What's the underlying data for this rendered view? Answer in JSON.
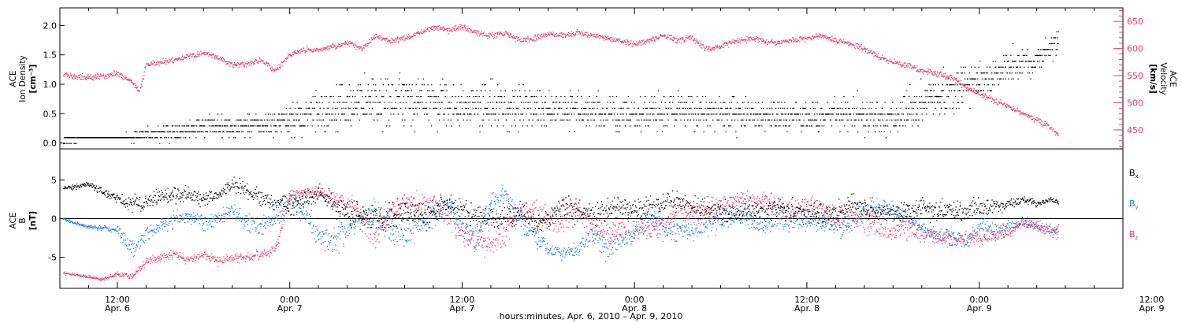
{
  "colors": {
    "black": "#000000",
    "red": "#e8396a",
    "blue": "#1f7fe0"
  },
  "chart_data": [
    {
      "type": "scatter",
      "panel": "top",
      "ylabel_left": [
        "ACE",
        "Ion Density",
        "[cm⁻³]"
      ],
      "ylabel_right": [
        "ACE",
        "Velocity",
        "[km/s]"
      ],
      "x_unit": "hours from 0:00 Apr. 6, 2010",
      "xlim": [
        8,
        82
      ],
      "ylim_left": [
        -0.1,
        2.3
      ],
      "ylim_right": [
        415,
        675
      ],
      "yticks_left": [
        "0.0",
        "0.5",
        "1.0",
        "1.5",
        "2.0"
      ],
      "yticks_left_values": [
        0.0,
        0.5,
        1.0,
        1.5,
        2.0
      ],
      "yticks_right": [
        "450",
        "500",
        "550",
        "600",
        "650"
      ],
      "yticks_right_values": [
        450,
        500,
        550,
        600,
        650
      ],
      "series": [
        {
          "color": "#000000",
          "axis": "left",
          "quantity": "ion density",
          "x": [
            8.2,
            10,
            12,
            13,
            14,
            16,
            18,
            20,
            22,
            24,
            27,
            30,
            33,
            36,
            39,
            42,
            45,
            48,
            51,
            54,
            57,
            60,
            63,
            66,
            69,
            70,
            72,
            74,
            76,
            77.5
          ],
          "y": [
            0.05,
            0.07,
            0.1,
            0.12,
            0.15,
            0.22,
            0.3,
            0.3,
            0.3,
            0.4,
            0.6,
            0.7,
            0.75,
            0.65,
            0.65,
            0.6,
            0.55,
            0.5,
            0.55,
            0.5,
            0.5,
            0.45,
            0.5,
            0.45,
            0.8,
            0.9,
            1.1,
            1.3,
            1.45,
            1.7
          ],
          "spread": [
            0.02,
            0.02,
            0.05,
            0.1,
            0.15,
            0.2,
            0.25,
            0.25,
            0.3,
            0.35,
            0.55,
            0.6,
            0.6,
            0.55,
            0.55,
            0.5,
            0.45,
            0.4,
            0.45,
            0.4,
            0.4,
            0.35,
            0.45,
            0.4,
            0.55,
            0.55,
            0.45,
            0.4,
            0.3,
            0.35
          ]
        },
        {
          "color": "#e8396a",
          "axis": "right",
          "quantity": "solar wind velocity",
          "x": [
            8.2,
            9,
            10,
            11,
            12,
            13,
            13.5,
            14,
            15,
            16,
            17,
            18,
            19,
            20,
            21,
            22,
            23,
            24,
            25,
            26,
            27,
            28,
            29,
            30,
            31,
            32,
            33,
            34,
            35,
            36,
            37,
            38,
            39,
            40,
            41,
            42,
            43,
            44,
            45,
            46,
            47,
            48,
            49,
            50,
            51,
            52,
            53,
            54,
            55,
            56,
            57,
            58,
            59,
            60,
            61,
            62,
            63,
            64,
            65,
            66,
            67,
            68,
            69,
            70,
            71,
            72,
            73,
            74,
            75,
            76,
            77,
            77.5
          ],
          "y": [
            555,
            548,
            548,
            550,
            555,
            540,
            520,
            572,
            575,
            580,
            588,
            592,
            585,
            570,
            572,
            580,
            560,
            590,
            600,
            598,
            605,
            610,
            600,
            625,
            615,
            620,
            630,
            640,
            635,
            640,
            630,
            625,
            630,
            615,
            620,
            628,
            625,
            630,
            625,
            620,
            615,
            610,
            615,
            625,
            615,
            620,
            600,
            605,
            615,
            620,
            615,
            610,
            615,
            620,
            625,
            615,
            610,
            600,
            585,
            575,
            570,
            560,
            555,
            548,
            530,
            518,
            505,
            495,
            482,
            468,
            455,
            440
          ]
        }
      ]
    },
    {
      "type": "scatter",
      "panel": "bottom",
      "ylabel_left": [
        "ACE",
        "B",
        "[nT]"
      ],
      "x_unit": "hours from 0:00 Apr. 6, 2010",
      "xlim": [
        8,
        82
      ],
      "ylim": [
        -9,
        9
      ],
      "yticks": [
        "-5",
        "0",
        "5"
      ],
      "ytick_values": [
        -5,
        0,
        5
      ],
      "zero_line": true,
      "legend_position": "right",
      "series": [
        {
          "name": "Bx",
          "color": "#000000",
          "x": [
            8.2,
            9,
            10,
            11,
            12,
            13,
            14,
            15,
            16,
            17,
            18,
            19,
            20,
            21,
            22,
            23,
            24,
            25,
            26,
            27,
            28,
            29,
            30,
            31,
            32,
            33,
            34,
            35,
            36,
            37,
            38,
            39,
            40,
            41,
            42,
            43,
            44,
            45,
            46,
            47,
            48,
            49,
            50,
            51,
            52,
            53,
            54,
            55,
            56,
            57,
            58,
            59,
            60,
            61,
            62,
            63,
            64,
            65,
            66,
            67,
            68,
            69,
            70,
            71,
            72,
            73,
            74,
            75,
            76,
            77,
            77.5
          ],
          "y": [
            4,
            4.2,
            4.5,
            3.5,
            2.5,
            2,
            2,
            3,
            3.2,
            3,
            2.6,
            3,
            4.5,
            3.8,
            2.5,
            2.3,
            1.5,
            2.5,
            3.5,
            2,
            0.5,
            0.5,
            0,
            0.5,
            1,
            0.5,
            1,
            2,
            1,
            0.5,
            0,
            0,
            1,
            -0.5,
            0,
            2,
            1,
            0.5,
            1,
            1.5,
            1,
            1.5,
            2,
            2.5,
            1.5,
            1.5,
            1,
            0.5,
            1.5,
            1,
            1.5,
            1,
            1,
            0.5,
            1,
            2,
            1.5,
            0.5,
            1,
            1.2,
            1.5,
            1,
            1.5,
            1,
            1.5,
            1.5,
            2,
            2.5,
            2,
            2.5,
            2.2
          ],
          "spread": [
            0.4,
            0.4,
            0.5,
            0.8,
            1,
            1.5,
            1.5,
            1.5,
            1.5,
            1.5,
            1.5,
            1.2,
            1.2,
            1.5,
            1.5,
            1.5,
            2,
            1.8,
            1.8,
            2,
            2.5,
            2.5,
            2.5,
            2.5,
            2.2,
            2.2,
            2.2,
            2.2,
            2.2,
            2.2,
            2.2,
            2.2,
            2,
            2,
            2,
            2,
            2,
            2,
            2,
            2,
            2,
            2,
            2,
            2,
            2,
            2,
            2,
            2,
            2,
            2,
            2,
            2,
            2,
            2,
            2,
            2,
            2,
            2,
            2,
            2,
            2,
            2,
            2,
            2,
            2,
            1.5,
            1,
            0.8,
            0.6,
            0.5,
            0.5
          ]
        },
        {
          "name": "By",
          "color": "#1f7fe0",
          "x": [
            8.2,
            9,
            10,
            11,
            12,
            13,
            14,
            15,
            16,
            17,
            18,
            19,
            20,
            21,
            22,
            23,
            24,
            25,
            26,
            27,
            28,
            29,
            30,
            31,
            32,
            33,
            34,
            35,
            36,
            37,
            38,
            39,
            40,
            41,
            42,
            43,
            44,
            45,
            46,
            47,
            48,
            49,
            50,
            51,
            52,
            53,
            54,
            55,
            56,
            57,
            58,
            59,
            60,
            61,
            62,
            63,
            64,
            65,
            66,
            67,
            68,
            69,
            70,
            71,
            72,
            73,
            74,
            75,
            76,
            77,
            77.5
          ],
          "y": [
            0,
            -0.5,
            -1,
            -1.2,
            -1.5,
            -4,
            -2,
            -1,
            0,
            0.5,
            -0.5,
            0,
            1,
            -0.5,
            -1,
            0,
            2.5,
            1,
            -2,
            -3,
            -1,
            0,
            1,
            -1.5,
            -2,
            -1,
            0.5,
            2,
            -1,
            -3,
            2,
            3,
            0,
            -2,
            -4,
            -4.2,
            -4,
            -2,
            -4,
            -3,
            -2,
            0,
            -1,
            -1.5,
            -1.5,
            -1,
            0,
            0.5,
            0,
            -1,
            0,
            -0.5,
            0,
            -0.5,
            -1,
            -0.5,
            1,
            1.5,
            1,
            0,
            -1,
            -2.5,
            -2,
            -3,
            -1,
            -1.5,
            -1,
            -0.5,
            -1,
            -1.5,
            -2
          ],
          "spread": [
            0.3,
            0.3,
            0.4,
            0.5,
            0.8,
            1.5,
            1.5,
            1.5,
            1.5,
            1.5,
            1.5,
            1.5,
            1.5,
            2,
            2,
            2,
            2.5,
            2.5,
            2.5,
            2.5,
            2.5,
            2.5,
            2.5,
            2.5,
            2.5,
            2.5,
            2.5,
            2.5,
            2.5,
            2.5,
            2.5,
            2,
            2,
            2,
            1.5,
            1.5,
            1.5,
            2,
            2,
            2,
            2,
            2,
            2,
            2,
            2,
            2,
            2,
            2,
            2,
            2,
            2,
            2,
            2,
            2,
            2,
            2,
            2,
            2,
            2,
            2,
            1.5,
            1.5,
            1.5,
            1.5,
            1.5,
            1.5,
            1.5,
            1,
            1,
            1,
            1
          ]
        },
        {
          "name": "Bz",
          "color": "#e8396a",
          "x": [
            8.2,
            9,
            10,
            11,
            12,
            13,
            14,
            15,
            16,
            17,
            18,
            19,
            20,
            21,
            22,
            23,
            24,
            25,
            26,
            27,
            28,
            29,
            30,
            31,
            32,
            33,
            34,
            35,
            36,
            37,
            38,
            39,
            40,
            41,
            42,
            43,
            44,
            45,
            46,
            47,
            48,
            49,
            50,
            51,
            52,
            53,
            54,
            55,
            56,
            57,
            58,
            59,
            60,
            61,
            62,
            63,
            64,
            65,
            66,
            67,
            68,
            69,
            70,
            71,
            72,
            73,
            74,
            75,
            76,
            77,
            77.5
          ],
          "y": [
            -7,
            -7.2,
            -7.5,
            -7.8,
            -7,
            -7.5,
            -5.5,
            -5,
            -4.5,
            -5.5,
            -4.5,
            -5.5,
            -5,
            -5,
            -4.5,
            -4,
            3,
            3.5,
            3.5,
            2.5,
            2,
            0,
            -2,
            1,
            2,
            2,
            2,
            1,
            -2,
            -2.5,
            -3,
            -2,
            1,
            1,
            0,
            0,
            1,
            -1,
            -2,
            -1,
            -1.5,
            -1.5,
            -0.5,
            0.5,
            1,
            1,
            2,
            2.5,
            2.5,
            2.5,
            1.5,
            1,
            2,
            1.5,
            0,
            0.5,
            0,
            -1,
            -1.5,
            -1,
            -2,
            -2,
            -3,
            -2.5,
            -2.5,
            -2,
            -1.5,
            -0.5,
            -1,
            -1.5,
            -1.2
          ],
          "spread": [
            0.3,
            0.3,
            0.3,
            0.3,
            0.5,
            0.5,
            0.8,
            0.8,
            0.8,
            0.8,
            0.8,
            0.8,
            0.8,
            0.8,
            0.8,
            1,
            0.8,
            0.8,
            1,
            1.5,
            2,
            2.5,
            2.5,
            2.5,
            2,
            2,
            2,
            2.5,
            2.5,
            2.5,
            2.5,
            2.5,
            2.5,
            2.5,
            2.5,
            2.5,
            2.5,
            2.5,
            2.5,
            2.5,
            2.5,
            2.5,
            2.5,
            2.5,
            2,
            2,
            1.5,
            1.5,
            1.5,
            1.5,
            2,
            2,
            2,
            2,
            2.5,
            2.5,
            2.5,
            2.5,
            2,
            2,
            1.5,
            1.5,
            1.5,
            1.5,
            1.5,
            1.5,
            1.5,
            1,
            1,
            1,
            1
          ]
        }
      ],
      "legend": [
        {
          "base": "B",
          "sub": "x",
          "color": "#000000"
        },
        {
          "base": "B",
          "sub": "y",
          "color": "#1f7fe0"
        },
        {
          "base": "B",
          "sub": "z",
          "color": "#e8396a"
        }
      ]
    }
  ],
  "x_axis": {
    "ticks": [
      {
        "hour": 12,
        "time": "12:00",
        "date": "Apr. 6"
      },
      {
        "hour": 24,
        "time": "0:00",
        "date": "Apr. 7"
      },
      {
        "hour": 36,
        "time": "12:00",
        "date": "Apr. 7"
      },
      {
        "hour": 48,
        "time": "0:00",
        "date": "Apr. 8"
      },
      {
        "hour": 60,
        "time": "12:00",
        "date": "Apr. 8"
      },
      {
        "hour": 72,
        "time": "0:00",
        "date": "Apr. 9"
      },
      {
        "hour": 84,
        "time": "12:00",
        "date": "Apr. 9"
      }
    ],
    "xlabel": "hours:minutes, Apr.  6, 2010 – Apr.  9, 2010"
  }
}
